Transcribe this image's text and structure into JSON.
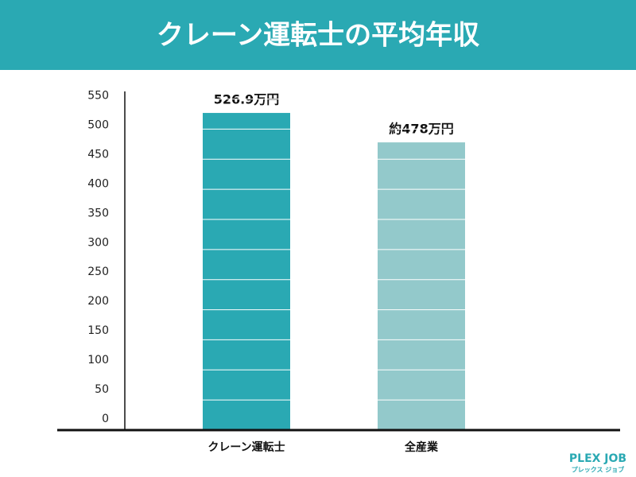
{
  "chart_data": {
    "type": "bar",
    "title": "クレーン運転士の平均年収",
    "categories": [
      "クレーン運転士",
      "全産業"
    ],
    "values": [
      526.9,
      478
    ],
    "value_labels": [
      "526.9万円",
      "約478万円"
    ],
    "colors": [
      "#2aa9b3",
      "#93c9cb"
    ],
    "ylim": [
      0,
      560
    ],
    "yticks": [
      0,
      50,
      100,
      150,
      200,
      250,
      300,
      350,
      400,
      450,
      500,
      550
    ],
    "grid": true
  },
  "logo": {
    "name": "PLEX JOB",
    "kana": "プレックス ジョブ"
  }
}
